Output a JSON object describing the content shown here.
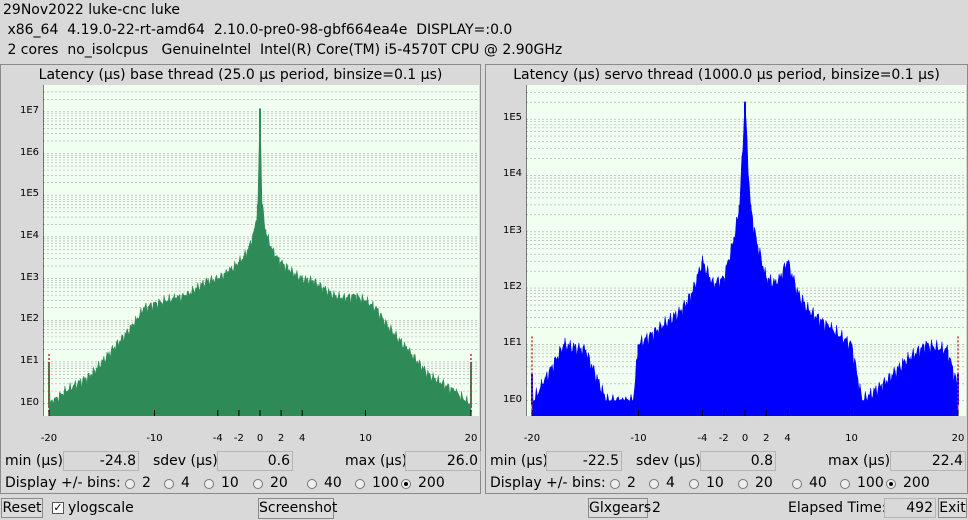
{
  "header": {
    "line1": "29Nov2022 luke-cnc luke",
    "line2": " x86_64  4.19.0-22-rt-amd64  2.10.0-pre0-98-gbf664ea4e  DISPLAY=:0.0",
    "line3": " 2 cores  no_isolcpus   GenuineIntel  Intel(R) Core(TM) i5-4570T CPU @ 2.90GHz"
  },
  "base": {
    "title": "Latency (μs) base thread (25.0 μs period, binsize=0.1 μs)",
    "min_label": "min (μs)",
    "min": "-24.8",
    "sdev_label": "sdev (μs)",
    "sdev": "0.6",
    "max_label": "max (μs)",
    "max": "26.0",
    "bins_label": "Display +/- bins:",
    "bins": [
      "2",
      "4",
      "10",
      "20",
      "40",
      "100",
      "200"
    ],
    "bins_selected": "200",
    "color": "#2e8b57"
  },
  "servo": {
    "title": "Latency (μs) servo thread (1000.0 μs period, binsize=0.1 μs)",
    "min_label": "min (μs)",
    "min": "-22.5",
    "sdev_label": "sdev (μs)",
    "sdev": "0.8",
    "max_label": "max (μs)",
    "max": "22.4",
    "bins_label": "Display +/- bins:",
    "bins": [
      "2",
      "4",
      "10",
      "20",
      "40",
      "100",
      "200"
    ],
    "bins_selected": "200",
    "color": "#0000ff"
  },
  "footer": {
    "reset": "Reset",
    "ylogscale": "ylogscale",
    "ylogscale_checked": "✓",
    "screenshot": "Screenshot",
    "glxgears": "Glxgears",
    "glxgears_count": "2",
    "elapsed_label": "Elapsed Time:",
    "elapsed_value": "492",
    "exit": "Exit"
  },
  "chart_data": [
    {
      "type": "bar",
      "title": "Latency (μs) base thread (25.0 μs period, binsize=0.1 μs)",
      "xlim": [
        -20,
        20
      ],
      "x_ticks": [
        "-20",
        "-10",
        "-4",
        "-2",
        "0",
        "2",
        "4",
        "10",
        "20"
      ],
      "y_scale": "log",
      "y_ticks": [
        "1E0",
        "1E1",
        "1E2",
        "1E3",
        "1E4",
        "1E5",
        "1E6",
        "1E7"
      ],
      "grid": true,
      "color": "#2e8b57",
      "x": [
        -20.0,
        -19.9,
        -18.5,
        -16,
        -14,
        -12,
        -11,
        -10,
        -9,
        -8,
        -7,
        -6,
        -5,
        -4,
        -3,
        -2,
        -1.5,
        -1,
        -0.5,
        -0.2,
        0,
        0.2,
        0.5,
        1,
        1.5,
        2,
        3,
        4,
        5,
        6,
        7,
        8,
        9,
        10,
        11,
        12,
        14,
        16,
        18.5,
        19.9,
        20.0
      ],
      "values": [
        10,
        1,
        2,
        5,
        20,
        80,
        200,
        250,
        300,
        350,
        400,
        600,
        900,
        1000,
        1500,
        2500,
        3500,
        6000,
        15000,
        60000,
        12000000,
        60000,
        15000,
        6000,
        3500,
        2500,
        1500,
        1000,
        900,
        600,
        400,
        350,
        400,
        300,
        200,
        80,
        20,
        5,
        2,
        1,
        10
      ]
    },
    {
      "type": "bar",
      "title": "Latency (μs) servo thread (1000.0 μs period, binsize=0.1 μs)",
      "xlim": [
        -20,
        20
      ],
      "x_ticks": [
        "-20",
        "-10",
        "-4",
        "-2",
        "0",
        "2",
        "4",
        "10",
        "20"
      ],
      "y_scale": "log",
      "y_ticks": [
        "1E0",
        "1E1",
        "1E2",
        "1E3",
        "1E4",
        "1E5"
      ],
      "grid": true,
      "color": "#0000ff",
      "x": [
        -20,
        -19.9,
        -19,
        -17,
        -15,
        -13,
        -11,
        -10.5,
        -10,
        -8,
        -6,
        -5,
        -4,
        -3,
        -2,
        -1,
        -0.5,
        0,
        0.5,
        1,
        2,
        3,
        4,
        5,
        6,
        8,
        10,
        11,
        13,
        15,
        17,
        19,
        19.9,
        20
      ],
      "values": [
        3,
        1,
        2,
        10,
        8,
        1,
        1,
        1,
        10,
        20,
        40,
        80,
        300,
        120,
        150,
        800,
        3000,
        200000,
        3000,
        800,
        150,
        120,
        300,
        80,
        40,
        20,
        10,
        1,
        2,
        5,
        10,
        8,
        2,
        3
      ]
    }
  ]
}
